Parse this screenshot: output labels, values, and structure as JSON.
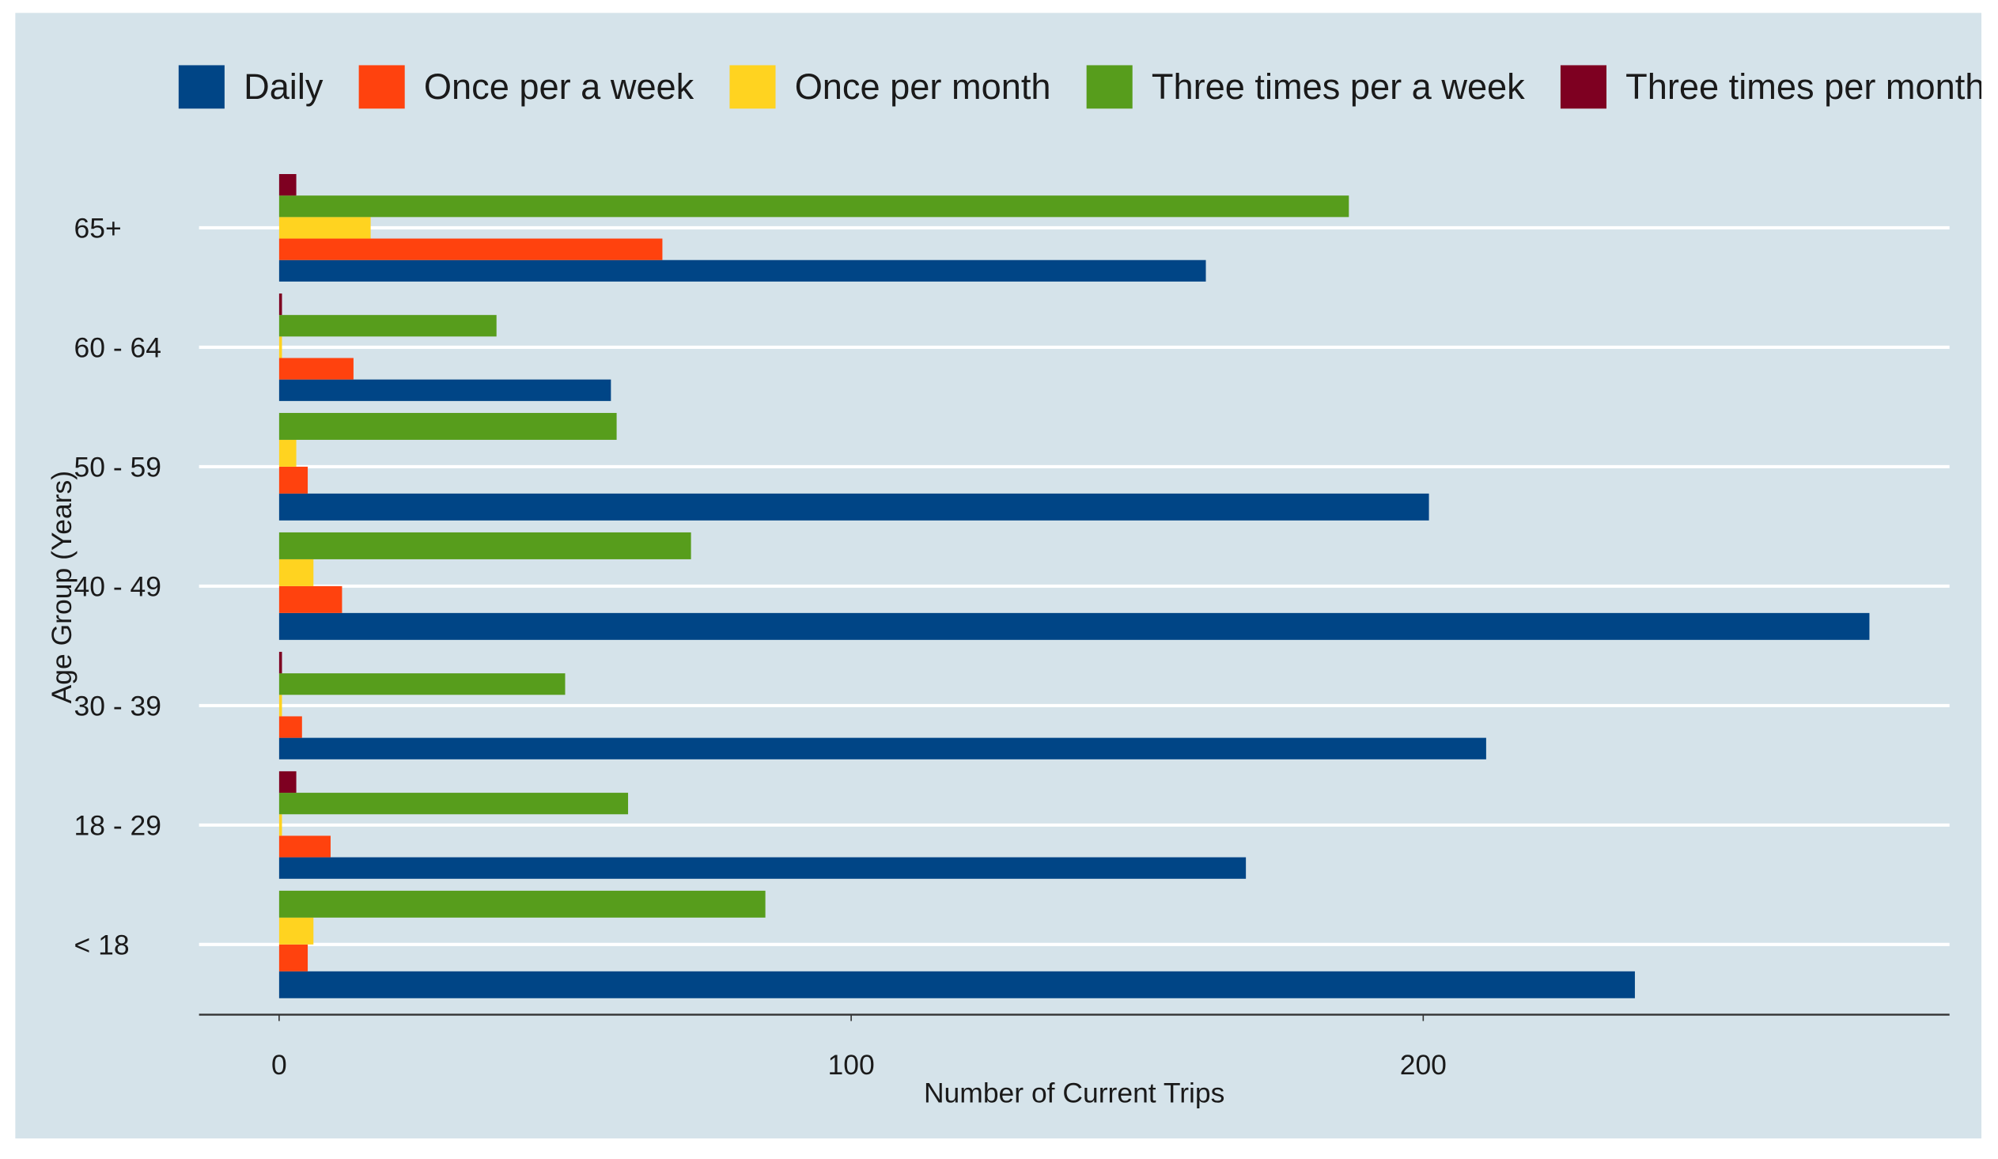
{
  "chart_data": {
    "type": "bar",
    "orientation": "horizontal",
    "x_label": "Number of Current Trips",
    "y_label": "Age Group (Years)",
    "categories": [
      "< 18",
      "18 - 29",
      "30 - 39",
      "40 - 49",
      "50 - 59",
      "60 - 64",
      "65+"
    ],
    "series": [
      {
        "name": "Daily",
        "color": "#004586",
        "values": [
          237,
          169,
          211,
          278,
          201,
          58,
          162
        ]
      },
      {
        "name": "Once per a week",
        "color": "#ff420e",
        "values": [
          5,
          9,
          4,
          11,
          5,
          13,
          67
        ]
      },
      {
        "name": "Once per month",
        "color": "#ffd320",
        "values": [
          6,
          0.5,
          0.5,
          6,
          3,
          0.5,
          16
        ]
      },
      {
        "name": "Three times per a week",
        "color": "#579d1c",
        "values": [
          85,
          61,
          50,
          72,
          59,
          38,
          187
        ]
      },
      {
        "name": "Three times per month",
        "color": "#7e0021",
        "values": [
          null,
          3,
          0.5,
          null,
          null,
          0.5,
          3
        ]
      }
    ],
    "xlim": [
      -14,
      292
    ],
    "xticks": [
      0,
      100,
      200
    ],
    "grid": true,
    "legend_position": "top"
  }
}
